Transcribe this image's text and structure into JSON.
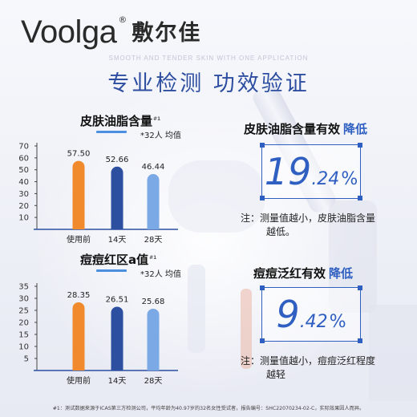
{
  "brand": {
    "latin": "Voolga",
    "registered": "®",
    "chinese": "敷尔佳"
  },
  "tagline": "SMOOTH AND TENDER SKIN WITH ONE APPLICATION",
  "headline": "专业检测 功效验证",
  "colors": {
    "accent": "#2f5fc1",
    "bar_baseline": "#f08a2c",
    "bar_14d": "#2c4fa0",
    "bar_28d": "#7aa9e6"
  },
  "chart_data": [
    {
      "type": "bar",
      "title": "皮肤油脂含量",
      "title_sup": "#1",
      "subtitle": "*32人 均值",
      "categories": [
        "使用前",
        "14天",
        "28天"
      ],
      "values": [
        57.5,
        52.66,
        46.44
      ],
      "value_labels": [
        "57.50",
        "52.66",
        "46.44"
      ],
      "yticks": [
        10,
        20,
        30,
        40,
        50,
        60,
        70
      ],
      "ylim": [
        0,
        70
      ],
      "grid": false,
      "xlabel": "",
      "ylabel": ""
    },
    {
      "type": "bar",
      "title": "痘痘红区a值",
      "title_sup": "#1",
      "subtitle": "*32人 均值",
      "categories": [
        "使用前",
        "14天",
        "28天"
      ],
      "values": [
        28.35,
        26.51,
        25.68
      ],
      "value_labels": [
        "28.35",
        "26.51",
        "25.68"
      ],
      "yticks": [
        5,
        10,
        15,
        20,
        25,
        30,
        35
      ],
      "ylim": [
        0,
        35
      ],
      "grid": false,
      "xlabel": "",
      "ylabel": ""
    }
  ],
  "effects": [
    {
      "title": "皮肤油脂含量有效",
      "highlight": "降低",
      "value_int": "19",
      "value_dec": ".24",
      "unit": "%",
      "note_line1": "注：测量值越小，皮肤油脂含量",
      "note_line2": "越低。"
    },
    {
      "title": "痘痘泛红有效",
      "highlight": "降低",
      "value_int": "9",
      "value_dec": ".42",
      "unit": "%",
      "note_line1": "注：测量值越小，痘痘泛红程度",
      "note_line2": "越轻"
    }
  ],
  "footnote": "#1：测试数据来源于ICAS第三方检测公司，平均年龄为40.97岁的32名女性受试者，报告编号：SHC22070234-02-C，实际效果因人而异。"
}
